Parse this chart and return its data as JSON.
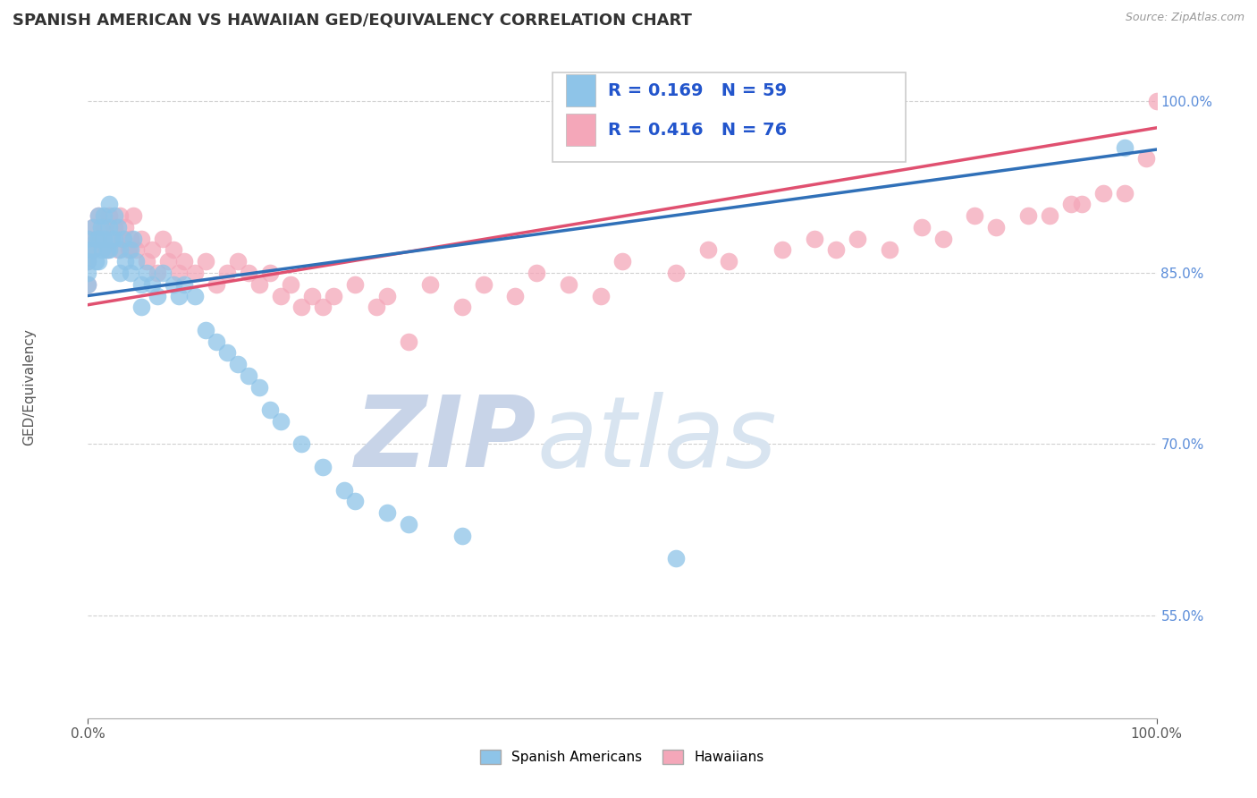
{
  "title": "SPANISH AMERICAN VS HAWAIIAN GED/EQUIVALENCY CORRELATION CHART",
  "source_text": "Source: ZipAtlas.com",
  "ylabel": "GED/Equivalency",
  "xlim": [
    0,
    1
  ],
  "ylim": [
    0.46,
    1.04
  ],
  "yticks": [
    0.55,
    0.7,
    0.85,
    1.0
  ],
  "ytick_labels": [
    "55.0%",
    "70.0%",
    "85.0%",
    "100.0%"
  ],
  "blue_color": "#8ec4e8",
  "pink_color": "#f4a7b9",
  "blue_line_color": "#3070b8",
  "pink_line_color": "#e05070",
  "legend_R_blue": "R = 0.169",
  "legend_N_blue": "N = 59",
  "legend_R_pink": "R = 0.416",
  "legend_N_pink": "N = 76",
  "legend_label_blue": "Spanish Americans",
  "legend_label_pink": "Hawaiians",
  "watermark_zip": "ZIP",
  "watermark_atlas": "atlas",
  "watermark_color": "#c8d4e8",
  "blue_intercept": 0.83,
  "blue_slope": 0.128,
  "pink_intercept": 0.822,
  "pink_slope": 0.155,
  "title_fontsize": 13,
  "axis_label_fontsize": 11,
  "tick_fontsize": 11,
  "legend_fontsize": 14,
  "blue_scatter_x": [
    0.0,
    0.0,
    0.0,
    0.0,
    0.0,
    0.005,
    0.005,
    0.007,
    0.008,
    0.01,
    0.01,
    0.01,
    0.012,
    0.013,
    0.015,
    0.015,
    0.018,
    0.02,
    0.02,
    0.02,
    0.022,
    0.025,
    0.025,
    0.028,
    0.03,
    0.03,
    0.033,
    0.035,
    0.04,
    0.04,
    0.042,
    0.045,
    0.05,
    0.05,
    0.055,
    0.06,
    0.065,
    0.07,
    0.08,
    0.085,
    0.09,
    0.1,
    0.11,
    0.12,
    0.13,
    0.14,
    0.15,
    0.16,
    0.17,
    0.18,
    0.2,
    0.22,
    0.24,
    0.25,
    0.28,
    0.3,
    0.35,
    0.55,
    0.97
  ],
  "blue_scatter_y": [
    0.88,
    0.87,
    0.86,
    0.85,
    0.84,
    0.89,
    0.87,
    0.86,
    0.88,
    0.9,
    0.88,
    0.86,
    0.89,
    0.87,
    0.9,
    0.88,
    0.87,
    0.91,
    0.89,
    0.87,
    0.88,
    0.9,
    0.88,
    0.89,
    0.87,
    0.85,
    0.88,
    0.86,
    0.87,
    0.85,
    0.88,
    0.86,
    0.84,
    0.82,
    0.85,
    0.84,
    0.83,
    0.85,
    0.84,
    0.83,
    0.84,
    0.83,
    0.8,
    0.79,
    0.78,
    0.77,
    0.76,
    0.75,
    0.73,
    0.72,
    0.7,
    0.68,
    0.66,
    0.65,
    0.64,
    0.63,
    0.62,
    0.6,
    0.96
  ],
  "pink_scatter_x": [
    0.0,
    0.0,
    0.0,
    0.005,
    0.005,
    0.008,
    0.01,
    0.012,
    0.015,
    0.018,
    0.02,
    0.022,
    0.025,
    0.028,
    0.03,
    0.032,
    0.035,
    0.038,
    0.04,
    0.042,
    0.045,
    0.05,
    0.055,
    0.06,
    0.065,
    0.07,
    0.075,
    0.08,
    0.085,
    0.09,
    0.1,
    0.11,
    0.12,
    0.13,
    0.14,
    0.15,
    0.16,
    0.17,
    0.18,
    0.19,
    0.2,
    0.21,
    0.22,
    0.23,
    0.25,
    0.27,
    0.28,
    0.3,
    0.32,
    0.35,
    0.37,
    0.4,
    0.42,
    0.45,
    0.48,
    0.5,
    0.55,
    0.58,
    0.6,
    0.65,
    0.68,
    0.7,
    0.72,
    0.75,
    0.78,
    0.8,
    0.83,
    0.85,
    0.88,
    0.9,
    0.92,
    0.93,
    0.95,
    0.97,
    0.99,
    1.0
  ],
  "pink_scatter_y": [
    0.88,
    0.86,
    0.84,
    0.89,
    0.87,
    0.88,
    0.9,
    0.88,
    0.89,
    0.87,
    0.9,
    0.88,
    0.89,
    0.87,
    0.9,
    0.88,
    0.89,
    0.87,
    0.88,
    0.9,
    0.87,
    0.88,
    0.86,
    0.87,
    0.85,
    0.88,
    0.86,
    0.87,
    0.85,
    0.86,
    0.85,
    0.86,
    0.84,
    0.85,
    0.86,
    0.85,
    0.84,
    0.85,
    0.83,
    0.84,
    0.82,
    0.83,
    0.82,
    0.83,
    0.84,
    0.82,
    0.83,
    0.79,
    0.84,
    0.82,
    0.84,
    0.83,
    0.85,
    0.84,
    0.83,
    0.86,
    0.85,
    0.87,
    0.86,
    0.87,
    0.88,
    0.87,
    0.88,
    0.87,
    0.89,
    0.88,
    0.9,
    0.89,
    0.9,
    0.9,
    0.91,
    0.91,
    0.92,
    0.92,
    0.95,
    1.0
  ]
}
